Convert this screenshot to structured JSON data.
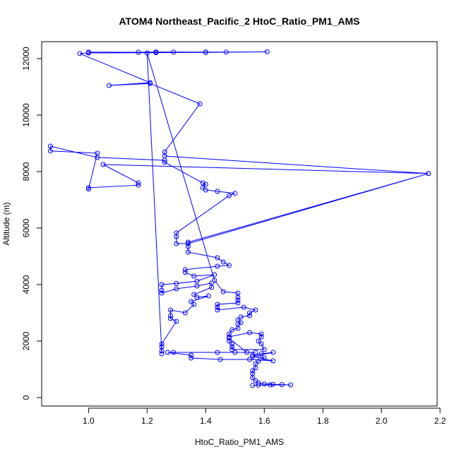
{
  "chart_data": {
    "type": "line",
    "title": "ATOM4 Northeast_Pacific_2 HtoC_Ratio_PM1_AMS",
    "xlabel": "HtoC_Ratio_PM1_AMS",
    "ylabel": "Altitude (m)",
    "xlim": [
      0.84,
      2.19
    ],
    "ylim": [
      -300,
      12600
    ],
    "x_ticks": [
      1.0,
      1.2,
      1.4,
      1.6,
      1.8,
      2.0,
      2.2
    ],
    "x_tick_labels": [
      "1.0",
      "1.2",
      "1.4",
      "1.6",
      "1.8",
      "2.0",
      "2.2"
    ],
    "y_ticks": [
      0,
      2000,
      4000,
      6000,
      8000,
      10000,
      12000
    ],
    "y_tick_labels": [
      "0",
      "2000",
      "4000",
      "6000",
      "8000",
      "10000",
      "12000"
    ],
    "grid": false,
    "legend": "none",
    "color": "#0000ff",
    "series": [
      {
        "points": [
          [
            1.0,
            12230
          ],
          [
            1.17,
            12225
          ],
          [
            1.23,
            12235
          ],
          [
            1.29,
            12230
          ],
          [
            1.4,
            12230
          ],
          [
            1.47,
            12230
          ],
          [
            1.61,
            12240
          ],
          [
            1.4,
            12220
          ],
          [
            1.23,
            12210
          ],
          [
            1.0,
            12200
          ],
          [
            0.97,
            12180
          ],
          [
            1.21,
            11150
          ],
          [
            1.07,
            11050
          ],
          [
            1.21,
            11120
          ],
          [
            1.38,
            10400
          ],
          [
            1.26,
            8700
          ],
          [
            1.26,
            8550
          ],
          [
            2.16,
            7930
          ],
          [
            1.05,
            8250
          ],
          [
            1.17,
            7600
          ],
          [
            1.17,
            7520
          ],
          [
            1.0,
            7430
          ],
          [
            1.0,
            7380
          ],
          [
            1.03,
            8650
          ],
          [
            0.87,
            8730
          ],
          [
            0.87,
            8900
          ],
          [
            1.03,
            8500
          ],
          [
            1.26,
            8400
          ],
          [
            1.26,
            8330
          ],
          [
            1.39,
            7600
          ],
          [
            1.4,
            7550
          ],
          [
            1.39,
            7430
          ],
          [
            1.4,
            7350
          ],
          [
            1.44,
            7300
          ],
          [
            1.5,
            7230
          ],
          [
            1.48,
            7150
          ],
          [
            1.3,
            5830
          ],
          [
            1.3,
            5700
          ],
          [
            1.3,
            5450
          ],
          [
            1.34,
            5450
          ],
          [
            2.16,
            7930
          ],
          [
            1.34,
            5500
          ],
          [
            1.34,
            5350
          ],
          [
            1.34,
            5150
          ],
          [
            1.44,
            4950
          ],
          [
            1.46,
            4800
          ],
          [
            1.48,
            4680
          ],
          [
            1.44,
            4650
          ],
          [
            1.33,
            4530
          ],
          [
            1.33,
            4430
          ],
          [
            1.36,
            4300
          ],
          [
            1.43,
            4350
          ],
          [
            1.37,
            4120
          ],
          [
            1.3,
            4040
          ],
          [
            1.25,
            4000
          ],
          [
            1.25,
            3800
          ],
          [
            1.25,
            3700
          ],
          [
            1.3,
            3850
          ],
          [
            1.37,
            3950
          ],
          [
            1.42,
            4050
          ],
          [
            1.42,
            3900
          ],
          [
            1.36,
            3650
          ],
          [
            1.37,
            3550
          ],
          [
            1.41,
            3600
          ],
          [
            1.35,
            3400
          ],
          [
            1.36,
            3300
          ],
          [
            1.33,
            3000
          ],
          [
            1.28,
            3100
          ],
          [
            1.28,
            2900
          ],
          [
            1.28,
            2800
          ],
          [
            1.3,
            2700
          ],
          [
            1.25,
            1900
          ],
          [
            1.25,
            1800
          ],
          [
            1.25,
            1650
          ],
          [
            1.25,
            1550
          ],
          [
            1.2,
            12200
          ],
          [
            1.43,
            4150
          ],
          [
            1.46,
            3750
          ],
          [
            1.51,
            3700
          ],
          [
            1.51,
            3550
          ],
          [
            1.51,
            3450
          ],
          [
            1.51,
            3350
          ],
          [
            1.44,
            3300
          ],
          [
            1.44,
            3200
          ],
          [
            1.44,
            3100
          ],
          [
            1.53,
            3200
          ],
          [
            1.57,
            3100
          ],
          [
            1.55,
            3000
          ],
          [
            1.55,
            2900
          ],
          [
            1.52,
            2850
          ],
          [
            1.51,
            2750
          ],
          [
            1.52,
            2650
          ],
          [
            1.51,
            2600
          ],
          [
            1.51,
            2450
          ],
          [
            1.49,
            2400
          ],
          [
            1.48,
            2250
          ],
          [
            1.48,
            2150
          ],
          [
            1.55,
            2300
          ],
          [
            1.59,
            2250
          ],
          [
            1.59,
            2150
          ],
          [
            1.58,
            2000
          ],
          [
            1.59,
            1900
          ],
          [
            1.6,
            1700
          ],
          [
            1.49,
            1700
          ],
          [
            1.49,
            1800
          ],
          [
            1.49,
            1900
          ],
          [
            1.48,
            2000
          ],
          [
            1.48,
            2100
          ],
          [
            1.54,
            1600
          ],
          [
            1.57,
            1600
          ],
          [
            1.5,
            1600
          ],
          [
            1.44,
            1600
          ],
          [
            1.29,
            1600
          ],
          [
            1.27,
            1600
          ],
          [
            1.35,
            1500
          ],
          [
            1.35,
            1400
          ],
          [
            1.45,
            1350
          ],
          [
            1.55,
            1350
          ],
          [
            1.63,
            1300
          ],
          [
            1.56,
            1450
          ],
          [
            1.63,
            1600
          ],
          [
            1.59,
            1550
          ],
          [
            1.56,
            1500
          ],
          [
            1.6,
            1400
          ],
          [
            1.58,
            1280
          ],
          [
            1.57,
            1200
          ],
          [
            1.57,
            1050
          ],
          [
            1.56,
            950
          ],
          [
            1.56,
            850
          ],
          [
            1.56,
            700
          ],
          [
            1.57,
            600
          ],
          [
            1.58,
            520
          ],
          [
            1.6,
            480
          ],
          [
            1.63,
            470
          ],
          [
            1.66,
            460
          ],
          [
            1.69,
            450
          ],
          [
            1.62,
            450
          ],
          [
            1.58,
            440
          ],
          [
            1.56,
            430
          ]
        ]
      }
    ]
  }
}
